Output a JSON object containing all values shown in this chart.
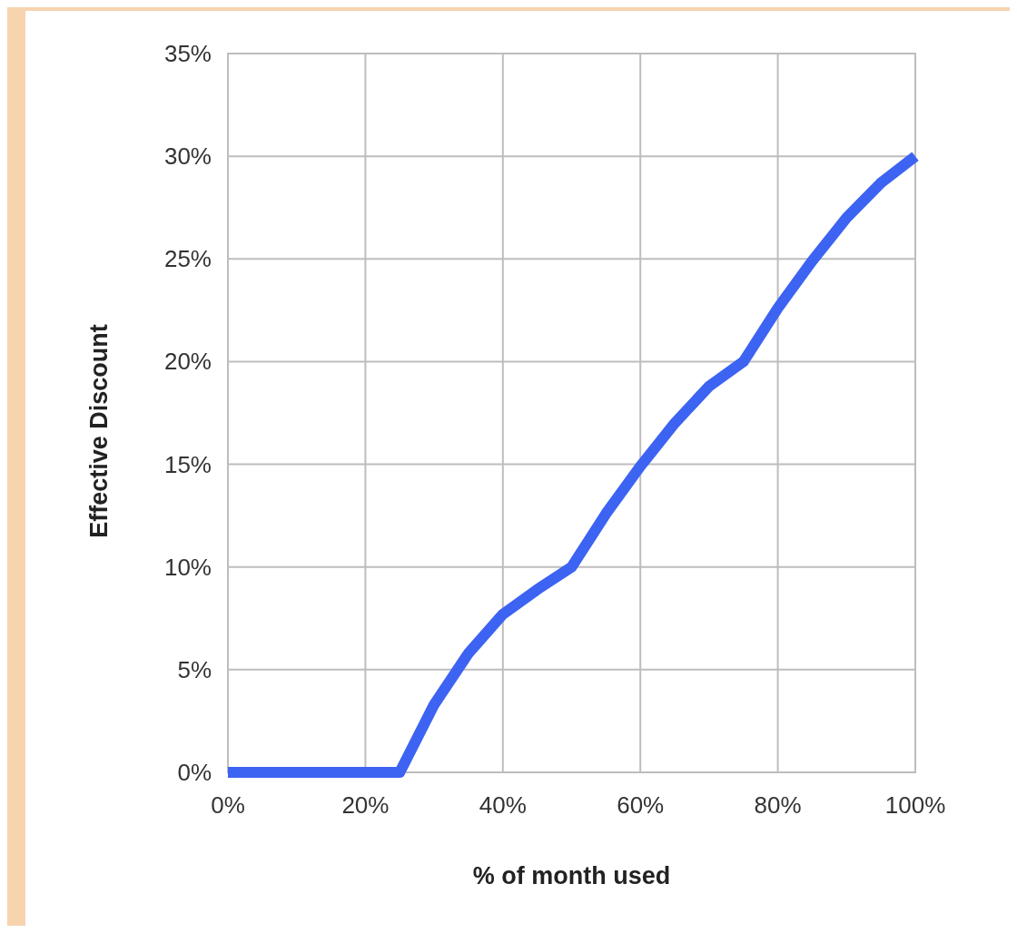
{
  "chart_data": {
    "type": "line",
    "xlabel": "% of month used",
    "ylabel": "Effective Discount",
    "x": [
      0,
      25,
      30,
      35,
      40,
      45,
      50,
      55,
      60,
      65,
      70,
      75,
      80,
      85,
      90,
      95,
      100
    ],
    "series": [
      {
        "color": "#3d63f2",
        "values": [
          0,
          0,
          3.3,
          5.8,
          7.7,
          8.9,
          10,
          12.6,
          14.9,
          17,
          18.8,
          20,
          22.6,
          24.9,
          27,
          28.7,
          30
        ]
      }
    ],
    "xlim": [
      0,
      100
    ],
    "xticks": [
      {
        "value": 0,
        "label": "0%"
      },
      {
        "value": 20,
        "label": "20%"
      },
      {
        "value": 40,
        "label": "40%"
      },
      {
        "value": 60,
        "label": "60%"
      },
      {
        "value": 80,
        "label": "80%"
      },
      {
        "value": 100,
        "label": "100%"
      }
    ],
    "ylim": [
      0,
      35
    ],
    "yticks": [
      {
        "value": 0,
        "label": "0%"
      },
      {
        "value": 5,
        "label": "5%"
      },
      {
        "value": 10,
        "label": "10%"
      },
      {
        "value": 15,
        "label": "15%"
      },
      {
        "value": 20,
        "label": "20%"
      },
      {
        "value": 25,
        "label": "25%"
      },
      {
        "value": 30,
        "label": "30%"
      },
      {
        "value": 35,
        "label": "35%"
      }
    ],
    "grid": true,
    "marker": "none",
    "line_style": "solid"
  }
}
